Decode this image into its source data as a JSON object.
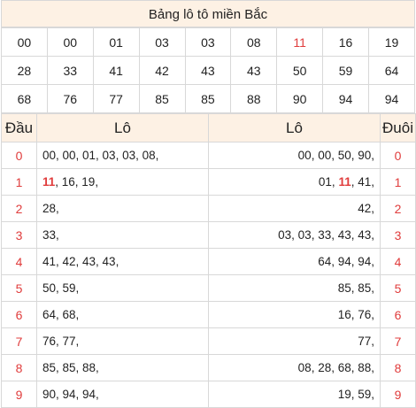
{
  "title": "Bảng lô tô miền Bắc",
  "grid": [
    [
      {
        "v": "00"
      },
      {
        "v": "00"
      },
      {
        "v": "01"
      },
      {
        "v": "03"
      },
      {
        "v": "03"
      },
      {
        "v": "08"
      },
      {
        "v": "11",
        "hl": true
      },
      {
        "v": "16"
      },
      {
        "v": "19"
      }
    ],
    [
      {
        "v": "28"
      },
      {
        "v": "33"
      },
      {
        "v": "41"
      },
      {
        "v": "42"
      },
      {
        "v": "43"
      },
      {
        "v": "43"
      },
      {
        "v": "50"
      },
      {
        "v": "59"
      },
      {
        "v": "64"
      }
    ],
    [
      {
        "v": "68"
      },
      {
        "v": "76"
      },
      {
        "v": "77"
      },
      {
        "v": "85"
      },
      {
        "v": "85"
      },
      {
        "v": "88"
      },
      {
        "v": "90"
      },
      {
        "v": "94"
      },
      {
        "v": "94"
      }
    ]
  ],
  "headers": {
    "dau": "Đầu",
    "lo_left": "Lô",
    "lo_right": "Lô",
    "duoi": "Đuôi"
  },
  "rows": [
    {
      "dau": "0",
      "left": [
        {
          "t": "00, 00, 01, 03, 03, 08,"
        }
      ],
      "right": [
        {
          "t": "00, 00, 50, 90,"
        }
      ],
      "duoi": "0"
    },
    {
      "dau": "1",
      "left": [
        {
          "t": "11",
          "red": true
        },
        {
          "t": ", 16, 19,"
        }
      ],
      "right": [
        {
          "t": "01, "
        },
        {
          "t": "11",
          "red": true
        },
        {
          "t": ", 41,"
        }
      ],
      "duoi": "1"
    },
    {
      "dau": "2",
      "left": [
        {
          "t": "28,"
        }
      ],
      "right": [
        {
          "t": "42,"
        }
      ],
      "duoi": "2"
    },
    {
      "dau": "3",
      "left": [
        {
          "t": "33,"
        }
      ],
      "right": [
        {
          "t": "03, 03, 33, 43, 43,"
        }
      ],
      "duoi": "3"
    },
    {
      "dau": "4",
      "left": [
        {
          "t": "41, 42, 43, 43,"
        }
      ],
      "right": [
        {
          "t": "64, 94, 94,"
        }
      ],
      "duoi": "4"
    },
    {
      "dau": "5",
      "left": [
        {
          "t": "50, 59,"
        }
      ],
      "right": [
        {
          "t": "85, 85,"
        }
      ],
      "duoi": "5"
    },
    {
      "dau": "6",
      "left": [
        {
          "t": "64, 68,"
        }
      ],
      "right": [
        {
          "t": "16, 76,"
        }
      ],
      "duoi": "6"
    },
    {
      "dau": "7",
      "left": [
        {
          "t": "76, 77,"
        }
      ],
      "right": [
        {
          "t": "77,"
        }
      ],
      "duoi": "7"
    },
    {
      "dau": "8",
      "left": [
        {
          "t": "85, 85, 88,"
        }
      ],
      "right": [
        {
          "t": "08, 28, 68, 88,"
        }
      ],
      "duoi": "8"
    },
    {
      "dau": "9",
      "left": [
        {
          "t": "90, 94, 94,"
        }
      ],
      "right": [
        {
          "t": "19, 59,"
        }
      ],
      "duoi": "9"
    }
  ],
  "colors": {
    "accent_red": "#e03c3c",
    "header_bg": "#fdf1e4",
    "border": "#d8d8d8"
  }
}
